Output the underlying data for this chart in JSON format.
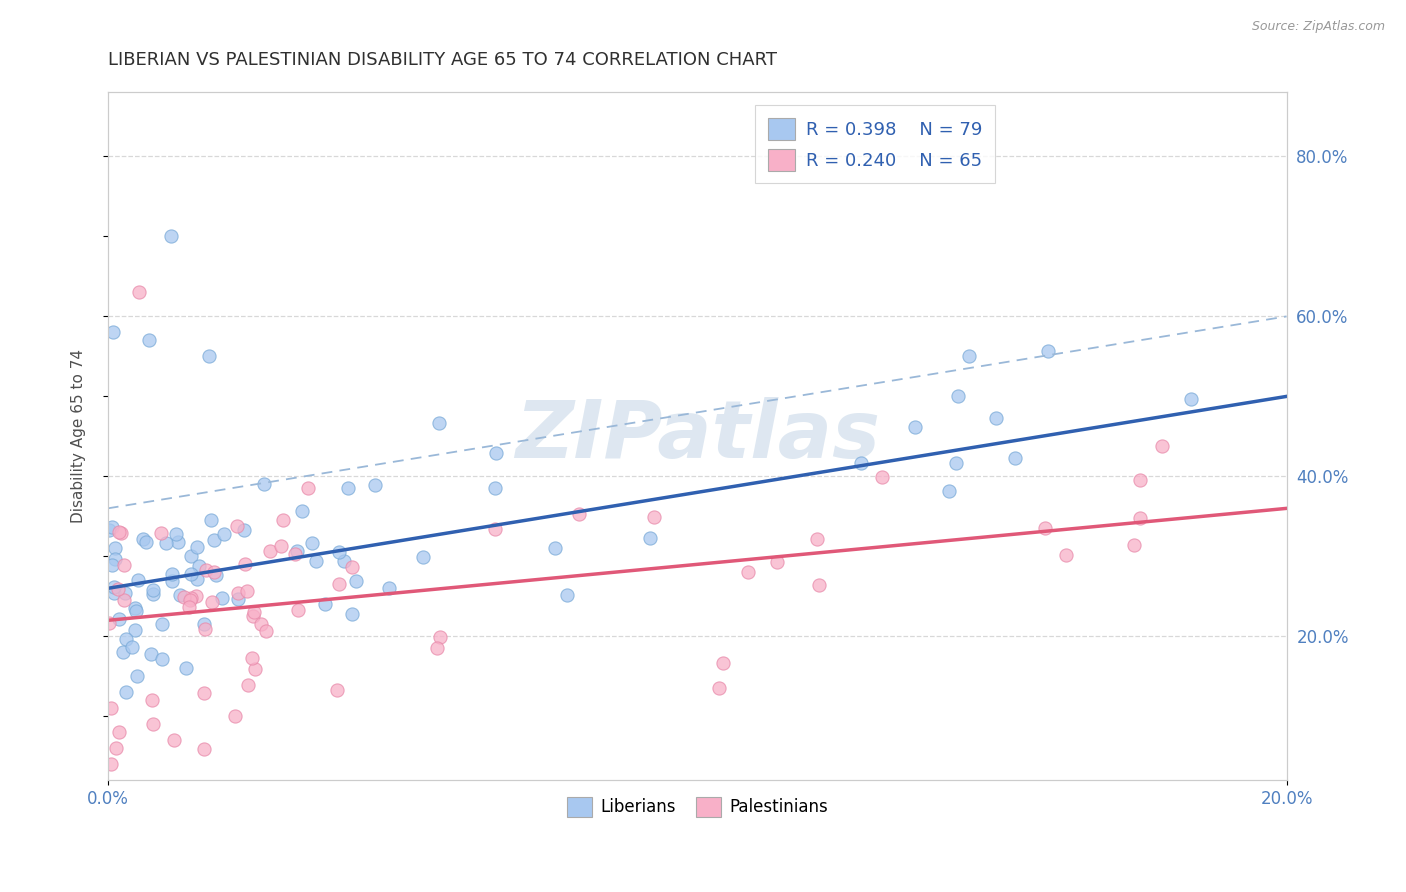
{
  "title": "LIBERIAN VS PALESTINIAN DISABILITY AGE 65 TO 74 CORRELATION CHART",
  "source_text": "Source: ZipAtlas.com",
  "ylabel": "Disability Age 65 to 74",
  "xlim": [
    0.0,
    0.2
  ],
  "ylim_low": 0.02,
  "ylim_high": 0.88,
  "liberian_R": 0.398,
  "liberian_N": 79,
  "palestinian_R": 0.24,
  "palestinian_N": 65,
  "liberian_color": "#a8c8f0",
  "liberian_edge": "#7aaad8",
  "palestinian_color": "#f8b0c8",
  "palestinian_edge": "#e88aaa",
  "liberian_line_color": "#3060b0",
  "palestinian_line_color": "#e05878",
  "dashed_line_color": "#9ab8d8",
  "watermark_text": "ZIPatlas",
  "watermark_color": "#c8d8e8",
  "background_color": "#ffffff",
  "grid_color": "#d8d8d8",
  "title_color": "#303030",
  "legend_text_color": "#3060b0",
  "axis_tick_color": "#5080c0",
  "right_yticks": [
    0.2,
    0.4,
    0.6,
    0.8
  ],
  "right_ytick_labels": [
    "20.0%",
    "40.0%",
    "60.0%",
    "80.0%"
  ],
  "xtick_vals": [
    0.0,
    0.2
  ],
  "xtick_labels": [
    "0.0%",
    "20.0%"
  ]
}
